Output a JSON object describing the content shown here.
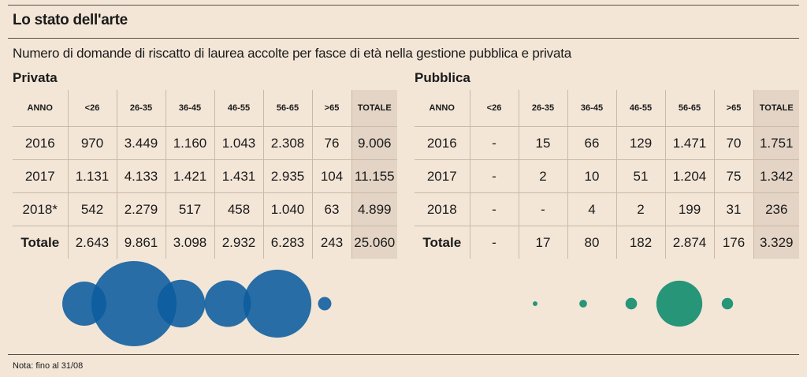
{
  "title": "Lo stato dell'arte",
  "subtitle": "Numero di domande di riscatto di laurea accolte per fasce di età nella gestione pubblica e privata",
  "headers": [
    "ANNO",
    "<26",
    "26-35",
    "36-45",
    "46-55",
    "56-65",
    ">65",
    "TOTALE"
  ],
  "privata": {
    "label": "Privata",
    "rows": [
      [
        "2016",
        "970",
        "3.449",
        "1.160",
        "1.043",
        "2.308",
        "76",
        "9.006"
      ],
      [
        "2017",
        "1.131",
        "4.133",
        "1.421",
        "1.431",
        "2.935",
        "104",
        "11.155"
      ],
      [
        "2018*",
        "542",
        "2.279",
        "517",
        "458",
        "1.040",
        "63",
        "4.899"
      ],
      [
        "Totale",
        "2.643",
        "9.861",
        "3.098",
        "2.932",
        "6.283",
        "243",
        "25.060"
      ]
    ],
    "color": "#0b5c9e",
    "bubbles": [
      2643,
      9861,
      3098,
      2932,
      6283,
      243
    ]
  },
  "pubblica": {
    "label": "Pubblica",
    "rows": [
      [
        "2016",
        "-",
        "15",
        "66",
        "129",
        "1.471",
        "70",
        "1.751"
      ],
      [
        "2017",
        "-",
        "2",
        "10",
        "51",
        "1.204",
        "75",
        "1.342"
      ],
      [
        "2018",
        "-",
        "-",
        "4",
        "2",
        "199",
        "31",
        "236"
      ],
      [
        "Totale",
        "-",
        "17",
        "80",
        "182",
        "2.874",
        "176",
        "3.329"
      ]
    ],
    "color": "#0a8a6a",
    "bubbles": [
      0,
      17,
      80,
      182,
      2874,
      176
    ]
  },
  "note": "Nota: fino al 31/08"
}
